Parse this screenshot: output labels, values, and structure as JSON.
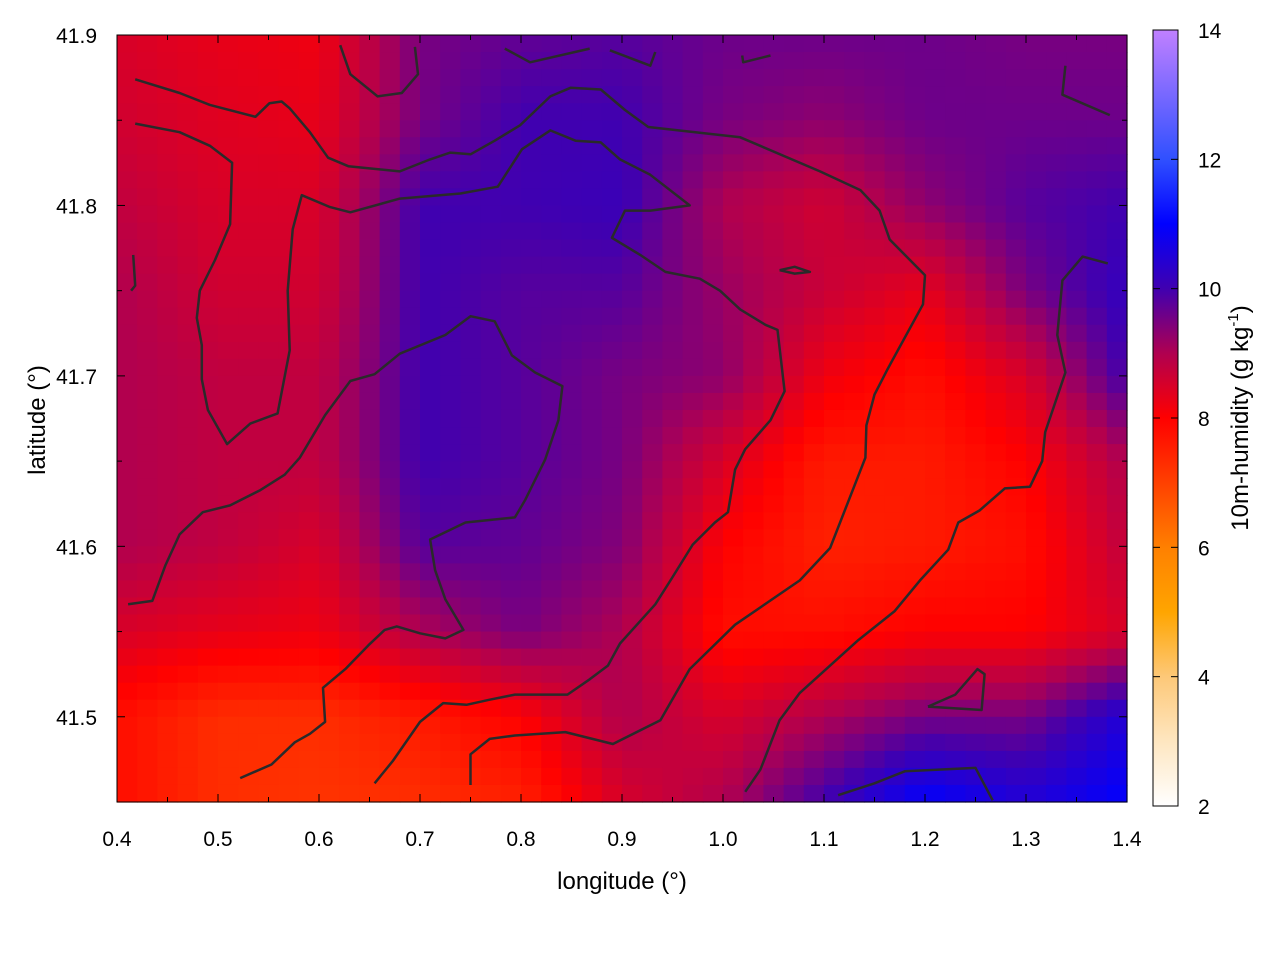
{
  "chart_data": {
    "type": "heatmap",
    "title": "",
    "xlabel": "longitude (°)",
    "ylabel": "latitude (°)",
    "xlim": [
      0.4,
      1.4
    ],
    "ylim": [
      41.45,
      41.9
    ],
    "xticks": [
      "0.4",
      "0.5",
      "0.6",
      "0.7",
      "0.8",
      "0.9",
      "1.0",
      "1.1",
      "1.2",
      "1.3",
      "1.4"
    ],
    "yticks": [
      "41.5",
      "41.6",
      "41.7",
      "41.8",
      "41.9"
    ],
    "grid": false,
    "colorbar": {
      "label_main": "10m-humidity (g kg",
      "label_sup": "-1",
      "label_end": ")",
      "range": [
        2,
        14
      ],
      "ticks": [
        "2",
        "4",
        "6",
        "8",
        "10",
        "12",
        "14"
      ],
      "colormap": [
        [
          2,
          "#ffffff"
        ],
        [
          3,
          "#fee6c0"
        ],
        [
          4,
          "#fdc878"
        ],
        [
          5,
          "#ffa500"
        ],
        [
          6,
          "#ff8000"
        ],
        [
          7,
          "#ff4000"
        ],
        [
          8,
          "#ff0000"
        ],
        [
          9,
          "#b00050"
        ],
        [
          10,
          "#4000b0"
        ],
        [
          11,
          "#0000ff"
        ],
        [
          12,
          "#3050ff"
        ],
        [
          14,
          "#c080ff"
        ]
      ]
    },
    "grid_lon": [
      0.4,
      0.5,
      0.6,
      0.7,
      0.8,
      0.9,
      1.0,
      1.1,
      1.2,
      1.3,
      1.4
    ],
    "grid_lat": [
      41.9,
      41.85,
      41.8,
      41.75,
      41.7,
      41.65,
      41.6,
      41.55,
      41.5,
      41.45
    ],
    "values": [
      [
        8.5,
        8.3,
        8.2,
        9.5,
        9.7,
        9.8,
        9.6,
        9.6,
        9.6,
        9.5,
        9.5
      ],
      [
        8.6,
        8.4,
        8.3,
        9.5,
        10.0,
        10.0,
        9.5,
        9.3,
        9.6,
        9.6,
        9.6
      ],
      [
        8.8,
        8.5,
        8.5,
        10.0,
        10.0,
        10.1,
        9.0,
        8.6,
        9.3,
        9.8,
        10.0
      ],
      [
        9.0,
        8.6,
        8.6,
        10.0,
        9.8,
        9.8,
        9.2,
        8.7,
        8.3,
        9.5,
        10.2
      ],
      [
        9.0,
        8.8,
        8.8,
        10.0,
        9.8,
        9.5,
        9.3,
        8.2,
        7.8,
        8.5,
        10.0
      ],
      [
        9.0,
        8.8,
        8.8,
        10.0,
        9.8,
        9.5,
        8.5,
        7.6,
        7.6,
        8.0,
        9.0
      ],
      [
        9.0,
        8.8,
        8.5,
        9.8,
        9.7,
        9.4,
        8.0,
        7.5,
        7.6,
        7.8,
        8.8
      ],
      [
        8.5,
        8.3,
        8.2,
        9.0,
        9.5,
        9.0,
        7.8,
        7.8,
        8.0,
        8.0,
        8.5
      ],
      [
        7.8,
        7.3,
        7.3,
        7.6,
        8.0,
        9.0,
        8.5,
        9.0,
        9.5,
        9.5,
        10.5
      ],
      [
        7.8,
        7.3,
        7.2,
        7.3,
        7.5,
        8.5,
        9.0,
        10.0,
        11.0,
        10.5,
        11.0
      ]
    ],
    "contour_color": "#2a2a2a",
    "contours": [
      [
        [
          0.418,
          41.848
        ],
        [
          0.462,
          41.843
        ],
        [
          0.492,
          41.835
        ],
        [
          0.514,
          41.825
        ],
        [
          0.512,
          41.789
        ],
        [
          0.497,
          41.768
        ],
        [
          0.482,
          41.75
        ],
        [
          0.479,
          41.734
        ],
        [
          0.484,
          41.718
        ],
        [
          0.484,
          41.698
        ],
        [
          0.49,
          41.68
        ],
        [
          0.509,
          41.66
        ],
        [
          0.532,
          41.672
        ],
        [
          0.559,
          41.678
        ],
        [
          0.571,
          41.715
        ],
        [
          0.569,
          41.75
        ],
        [
          0.574,
          41.786
        ],
        [
          0.583,
          41.806
        ],
        [
          0.611,
          41.799
        ],
        [
          0.631,
          41.796
        ],
        [
          0.68,
          41.804
        ],
        [
          0.74,
          41.807
        ],
        [
          0.777,
          41.811
        ],
        [
          0.801,
          41.833
        ],
        [
          0.829,
          41.844
        ],
        [
          0.854,
          41.838
        ],
        [
          0.879,
          41.837
        ],
        [
          0.898,
          41.827
        ],
        [
          0.928,
          41.818
        ],
        [
          0.967,
          41.8
        ],
        [
          0.928,
          41.797
        ],
        [
          0.903,
          41.797
        ],
        [
          0.89,
          41.781
        ],
        [
          0.918,
          41.771
        ],
        [
          0.943,
          41.761
        ],
        [
          0.977,
          41.757
        ],
        [
          0.997,
          41.75
        ],
        [
          1.017,
          41.739
        ],
        [
          1.042,
          41.73
        ],
        [
          1.054,
          41.727
        ],
        [
          1.061,
          41.691
        ],
        [
          1.047,
          41.674
        ],
        [
          1.022,
          41.657
        ],
        [
          1.012,
          41.645
        ],
        [
          1.005,
          41.62
        ],
        [
          0.992,
          41.614
        ],
        [
          0.97,
          41.601
        ],
        [
          0.948,
          41.58
        ],
        [
          0.933,
          41.566
        ],
        [
          0.898,
          41.543
        ],
        [
          0.886,
          41.53
        ],
        [
          0.868,
          41.522
        ],
        [
          0.846,
          41.513
        ],
        [
          0.794,
          41.513
        ],
        [
          0.769,
          41.51
        ],
        [
          0.746,
          41.507
        ],
        [
          0.723,
          41.508
        ],
        [
          0.7,
          41.497
        ],
        [
          0.673,
          41.474
        ],
        [
          0.655,
          41.461
        ]
      ],
      [
        [
          0.418,
          41.874
        ],
        [
          0.462,
          41.866
        ],
        [
          0.492,
          41.859
        ],
        [
          0.537,
          41.852
        ],
        [
          0.551,
          41.86
        ],
        [
          0.563,
          41.861
        ],
        [
          0.571,
          41.857
        ],
        [
          0.591,
          41.843
        ],
        [
          0.609,
          41.828
        ],
        [
          0.629,
          41.823
        ],
        [
          0.68,
          41.82
        ],
        [
          0.71,
          41.827
        ],
        [
          0.73,
          41.831
        ],
        [
          0.75,
          41.83
        ],
        [
          0.774,
          41.838
        ],
        [
          0.799,
          41.847
        ],
        [
          0.829,
          41.864
        ],
        [
          0.849,
          41.869
        ],
        [
          0.879,
          41.868
        ],
        [
          0.903,
          41.856
        ],
        [
          0.926,
          41.846
        ],
        [
          1.017,
          41.84
        ],
        [
          1.096,
          41.82
        ],
        [
          1.136,
          41.809
        ],
        [
          1.155,
          41.797
        ],
        [
          1.165,
          41.78
        ],
        [
          1.2,
          41.759
        ],
        [
          1.198,
          41.742
        ],
        [
          1.163,
          41.704
        ],
        [
          1.15,
          41.689
        ],
        [
          1.142,
          41.671
        ],
        [
          1.141,
          41.652
        ],
        [
          1.106,
          41.599
        ],
        [
          1.076,
          41.58
        ],
        [
          1.012,
          41.554
        ],
        [
          0.967,
          41.528
        ],
        [
          0.938,
          41.498
        ],
        [
          0.891,
          41.484
        ],
        [
          0.844,
          41.491
        ],
        [
          0.794,
          41.489
        ],
        [
          0.769,
          41.487
        ],
        [
          0.75,
          41.478
        ],
        [
          0.75,
          41.46
        ]
      ],
      [
        [
          0.411,
          41.566
        ],
        [
          0.435,
          41.568
        ],
        [
          0.448,
          41.589
        ],
        [
          0.462,
          41.607
        ],
        [
          0.485,
          41.62
        ],
        [
          0.512,
          41.624
        ],
        [
          0.542,
          41.633
        ],
        [
          0.566,
          41.642
        ],
        [
          0.581,
          41.652
        ],
        [
          0.606,
          41.677
        ],
        [
          0.631,
          41.697
        ],
        [
          0.655,
          41.701
        ],
        [
          0.68,
          41.713
        ],
        [
          0.725,
          41.724
        ],
        [
          0.75,
          41.735
        ],
        [
          0.774,
          41.732
        ],
        [
          0.791,
          41.712
        ],
        [
          0.814,
          41.702
        ],
        [
          0.841,
          41.694
        ],
        [
          0.837,
          41.674
        ],
        [
          0.824,
          41.651
        ],
        [
          0.804,
          41.627
        ],
        [
          0.794,
          41.617
        ],
        [
          0.745,
          41.614
        ],
        [
          0.71,
          41.604
        ],
        [
          0.715,
          41.586
        ],
        [
          0.725,
          41.569
        ],
        [
          0.743,
          41.551
        ],
        [
          0.725,
          41.546
        ],
        [
          0.7,
          41.549
        ],
        [
          0.677,
          41.553
        ],
        [
          0.665,
          41.551
        ],
        [
          0.649,
          41.542
        ],
        [
          0.626,
          41.528
        ],
        [
          0.604,
          41.517
        ],
        [
          0.606,
          41.497
        ],
        [
          0.591,
          41.49
        ],
        [
          0.576,
          41.485
        ],
        [
          0.553,
          41.472
        ],
        [
          0.522,
          41.464
        ]
      ],
      [
        [
          1.022,
          41.456
        ],
        [
          1.037,
          41.469
        ],
        [
          1.056,
          41.498
        ],
        [
          1.076,
          41.514
        ],
        [
          1.106,
          41.53
        ],
        [
          1.134,
          41.545
        ],
        [
          1.17,
          41.562
        ],
        [
          1.195,
          41.58
        ],
        [
          1.223,
          41.598
        ],
        [
          1.233,
          41.614
        ],
        [
          1.254,
          41.621
        ],
        [
          1.279,
          41.634
        ],
        [
          1.304,
          41.635
        ],
        [
          1.316,
          41.65
        ],
        [
          1.319,
          41.667
        ],
        [
          1.339,
          41.702
        ],
        [
          1.331,
          41.724
        ],
        [
          1.336,
          41.756
        ],
        [
          1.356,
          41.77
        ],
        [
          1.381,
          41.766
        ]
      ],
      [
        [
          1.114,
          41.454
        ],
        [
          1.15,
          41.461
        ],
        [
          1.18,
          41.468
        ],
        [
          1.25,
          41.47
        ],
        [
          1.267,
          41.451
        ]
      ],
      [
        [
          1.203,
          41.506
        ],
        [
          1.256,
          41.504
        ],
        [
          1.259,
          41.525
        ],
        [
          1.252,
          41.528
        ],
        [
          1.23,
          41.513
        ],
        [
          1.203,
          41.506
        ]
      ],
      [
        [
          0.621,
          41.894
        ],
        [
          0.631,
          41.877
        ],
        [
          0.658,
          41.864
        ],
        [
          0.682,
          41.866
        ],
        [
          0.698,
          41.877
        ],
        [
          0.695,
          41.893
        ]
      ],
      [
        [
          0.784,
          41.892
        ],
        [
          0.809,
          41.884
        ],
        [
          0.868,
          41.892
        ]
      ],
      [
        [
          0.888,
          41.891
        ],
        [
          0.928,
          41.882
        ],
        [
          0.933,
          41.89
        ]
      ],
      [
        [
          1.019,
          41.888
        ],
        [
          1.02,
          41.884
        ],
        [
          1.047,
          41.888
        ]
      ],
      [
        [
          1.339,
          41.882
        ],
        [
          1.336,
          41.865
        ],
        [
          1.383,
          41.853
        ]
      ],
      [
        [
          1.056,
          41.762
        ],
        [
          1.071,
          41.764
        ],
        [
          1.086,
          41.761
        ],
        [
          1.071,
          41.76
        ],
        [
          1.056,
          41.762
        ]
      ],
      [
        [
          0.416,
          41.771
        ],
        [
          0.418,
          41.753
        ],
        [
          0.414,
          41.75
        ]
      ]
    ]
  }
}
